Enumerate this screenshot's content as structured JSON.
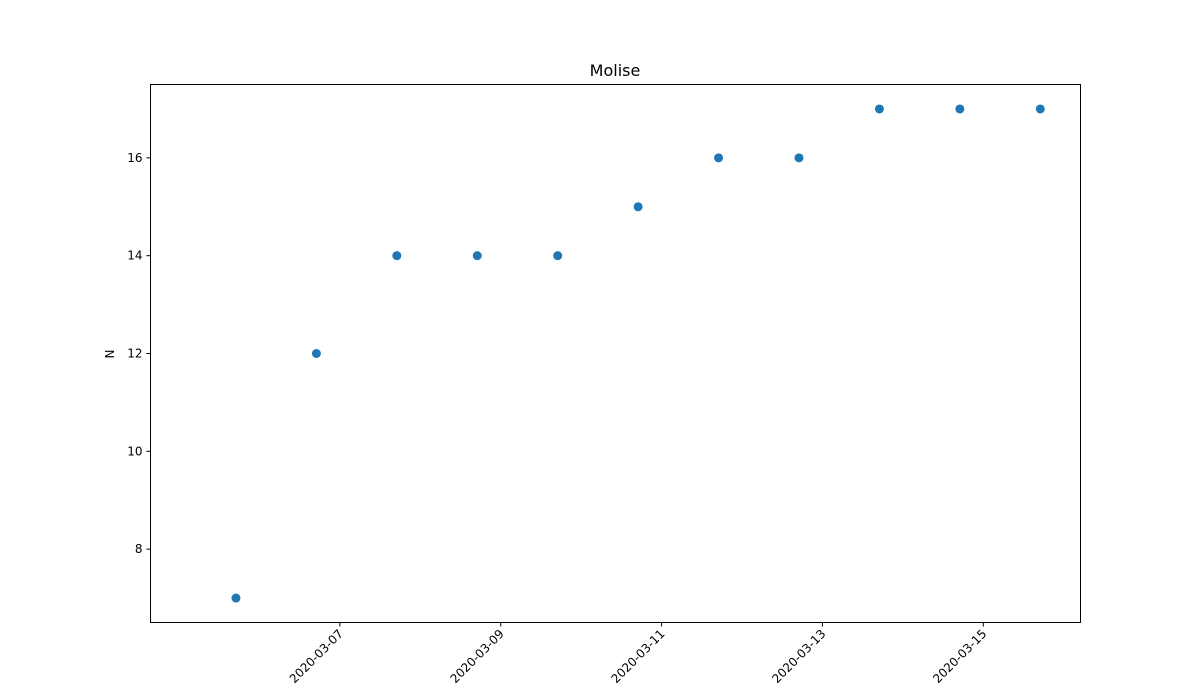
{
  "chart_data": {
    "type": "scatter",
    "title": "Molise",
    "xlabel": "",
    "ylabel": "N",
    "x": [
      "2020-03-05",
      "2020-03-06",
      "2020-03-07",
      "2020-03-08",
      "2020-03-09",
      "2020-03-10",
      "2020-03-11",
      "2020-03-12",
      "2020-03-13",
      "2020-03-14",
      "2020-03-15"
    ],
    "y": [
      7,
      12,
      14,
      14,
      14,
      15,
      16,
      16,
      17,
      17,
      17
    ],
    "xlim": [
      "2020-03-04T15:30",
      "2020-03-16T05:00"
    ],
    "ylim": [
      6.5,
      17.5
    ],
    "xticks": [
      "2020-03-07",
      "2020-03-09",
      "2020-03-11",
      "2020-03-13",
      "2020-03-15"
    ],
    "yticks": [
      8,
      10,
      12,
      14,
      16
    ],
    "xtick_rotation": 45,
    "grid": false,
    "marker_color": "#1f77b4"
  }
}
